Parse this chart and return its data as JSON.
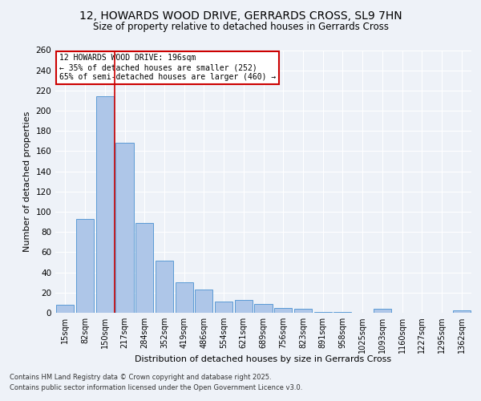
{
  "title": "12, HOWARDS WOOD DRIVE, GERRARDS CROSS, SL9 7HN",
  "subtitle": "Size of property relative to detached houses in Gerrards Cross",
  "xlabel": "Distribution of detached houses by size in Gerrards Cross",
  "ylabel": "Number of detached properties",
  "categories": [
    "15sqm",
    "82sqm",
    "150sqm",
    "217sqm",
    "284sqm",
    "352sqm",
    "419sqm",
    "486sqm",
    "554sqm",
    "621sqm",
    "689sqm",
    "756sqm",
    "823sqm",
    "891sqm",
    "958sqm",
    "1025sqm",
    "1093sqm",
    "1160sqm",
    "1227sqm",
    "1295sqm",
    "1362sqm"
  ],
  "values": [
    8,
    93,
    214,
    168,
    89,
    52,
    30,
    23,
    11,
    13,
    9,
    5,
    4,
    1,
    1,
    0,
    4,
    0,
    0,
    0,
    2
  ],
  "bar_color": "#aec6e8",
  "bar_edge_color": "#5b9bd5",
  "red_line_x": 2.5,
  "annotation_line1": "12 HOWARDS WOOD DRIVE: 196sqm",
  "annotation_line2": "← 35% of detached houses are smaller (252)",
  "annotation_line3": "65% of semi-detached houses are larger (460) →",
  "annotation_box_color": "#ffffff",
  "annotation_box_edge_color": "#cc0000",
  "ylim": [
    0,
    260
  ],
  "yticks": [
    0,
    20,
    40,
    60,
    80,
    100,
    120,
    140,
    160,
    180,
    200,
    220,
    240,
    260
  ],
  "background_color": "#eef2f8",
  "grid_color": "#ffffff",
  "footer_line1": "Contains HM Land Registry data © Crown copyright and database right 2025.",
  "footer_line2": "Contains public sector information licensed under the Open Government Licence v3.0."
}
